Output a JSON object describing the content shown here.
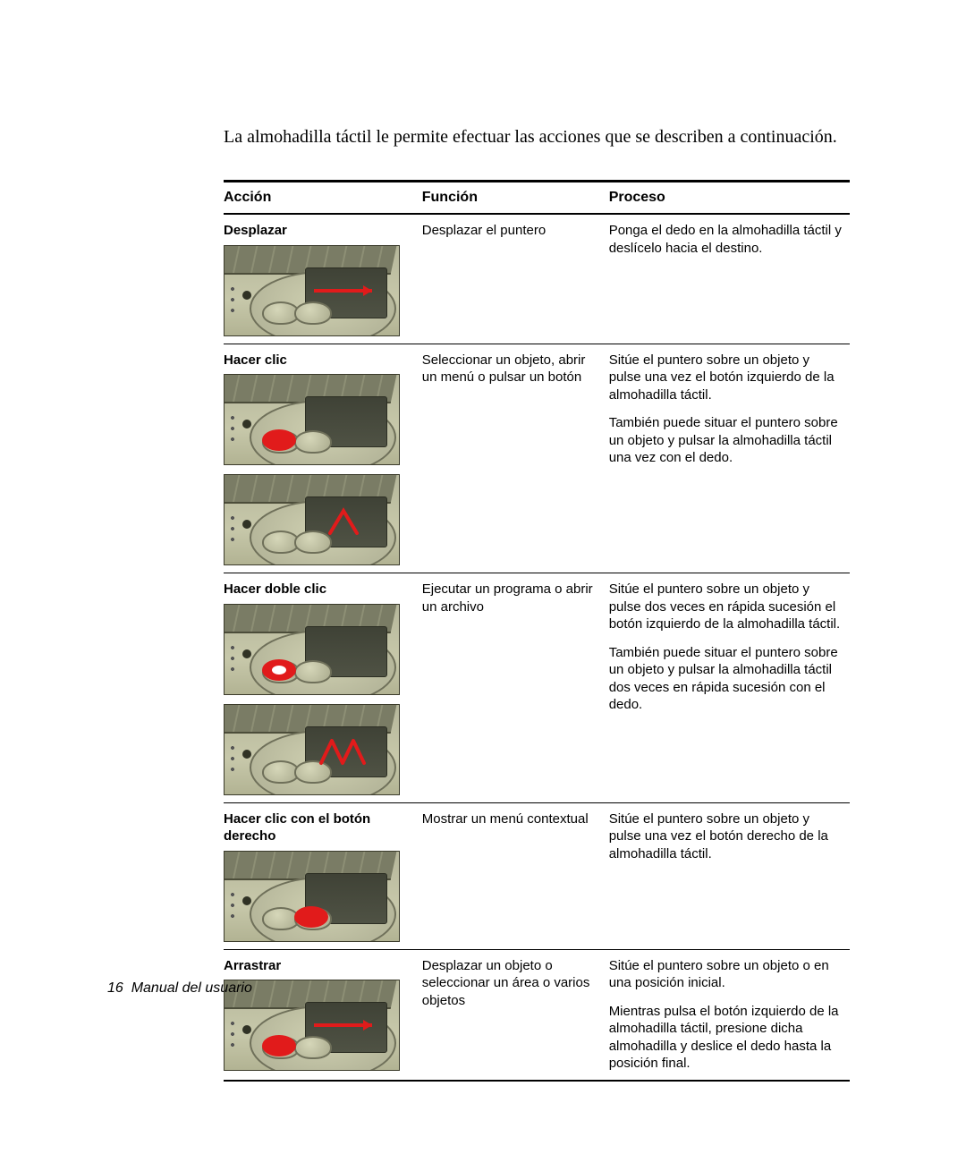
{
  "intro_text": "La almohadilla táctil le permite efectuar las acciones que se describen a continuación.",
  "columns": {
    "action": "Acción",
    "function": "Función",
    "process": "Proceso"
  },
  "rows": [
    {
      "action": "Desplazar",
      "function": "Desplazar el puntero",
      "process": [
        "Ponga el dedo en la almohadilla táctil y deslícelo hacia el destino."
      ],
      "diagrams": [
        "move"
      ]
    },
    {
      "action": "Hacer clic",
      "function": "Seleccionar un objeto, abrir un menú o pulsar un  botón",
      "process": [
        "Sitúe el puntero sobre un objeto y pulse una vez el botón izquierdo de la almohadilla táctil.",
        "También puede situar el puntero sobre un objeto y pulsar la almohadilla táctil una vez con el dedo."
      ],
      "diagrams": [
        "click-left",
        "tap-once"
      ]
    },
    {
      "action": "Hacer doble clic",
      "function": "Ejecutar un programa o abrir un archivo",
      "process": [
        "Sitúe el puntero sobre un objeto y pulse dos veces en rápida sucesión el botón izquierdo de la almohadilla táctil.",
        "También puede situar el puntero sobre un objeto y pulsar la almohadilla táctil dos veces en rápida sucesión con el dedo."
      ],
      "diagrams": [
        "dblclick-left",
        "tap-twice"
      ]
    },
    {
      "action": "Hacer clic con el botón derecho",
      "function": "Mostrar un menú contextual",
      "process": [
        "Sitúe el puntero sobre un objeto y pulse una vez el botón derecho de la almohadilla táctil."
      ],
      "diagrams": [
        "click-right"
      ]
    },
    {
      "action": "Arrastrar",
      "function": "Desplazar un objeto o seleccionar un área o varios objetos",
      "process": [
        "Sitúe el puntero sobre un objeto o en una posición inicial.",
        "Mientras pulsa el botón izquierdo de la almohadilla táctil, presione dicha almohadilla y deslice el dedo hasta la posición final."
      ],
      "diagrams": [
        "drag"
      ]
    }
  ],
  "overlay_color": "#e11b1b",
  "footer_page": "16",
  "footer_text": "Manual del usuario"
}
